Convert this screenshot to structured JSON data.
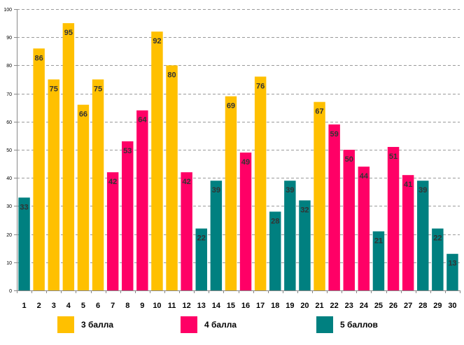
{
  "chart_data": {
    "type": "bar",
    "title": "",
    "xlabel": "",
    "ylabel": "",
    "ylim": [
      0,
      100
    ],
    "yticks": [
      0,
      10,
      20,
      30,
      40,
      50,
      60,
      70,
      80,
      90,
      100
    ],
    "categories": [
      "1",
      "2",
      "3",
      "4",
      "5",
      "6",
      "7",
      "8",
      "9",
      "10",
      "11",
      "12",
      "13",
      "14",
      "15",
      "16",
      "17",
      "18",
      "19",
      "20",
      "21",
      "22",
      "23",
      "24",
      "25",
      "26",
      "27",
      "28",
      "29",
      "30"
    ],
    "values": [
      33,
      86,
      75,
      95,
      66,
      75,
      42,
      53,
      64,
      92,
      80,
      42,
      22,
      39,
      69,
      49,
      76,
      28,
      39,
      32,
      67,
      59,
      50,
      44,
      21,
      51,
      41,
      39,
      22,
      13
    ],
    "groups": [
      5,
      3,
      3,
      3,
      3,
      3,
      4,
      4,
      4,
      3,
      3,
      4,
      5,
      5,
      3,
      4,
      3,
      5,
      5,
      5,
      3,
      4,
      4,
      4,
      5,
      4,
      4,
      5,
      5,
      5
    ],
    "grid": true,
    "legend": [
      {
        "key": 3,
        "label": "3 балла",
        "color": "#FFC000"
      },
      {
        "key": 4,
        "label": "4 балла",
        "color": "#FF0066"
      },
      {
        "key": 5,
        "label": "5 баллов",
        "color": "#008080"
      }
    ]
  }
}
